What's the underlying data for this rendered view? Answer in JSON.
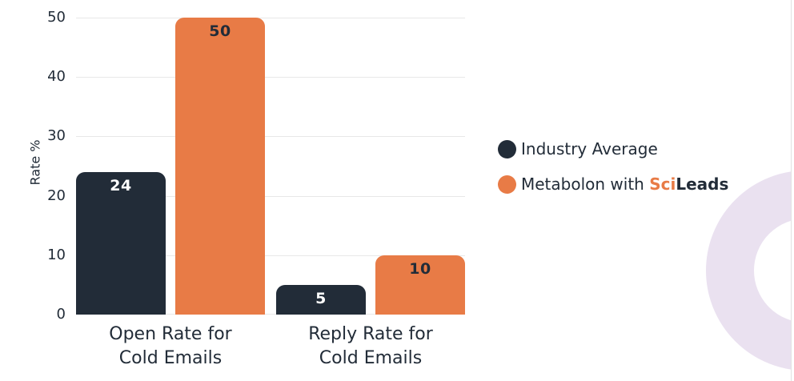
{
  "chart_data": {
    "type": "bar",
    "ylabel": "Rate %",
    "categories": [
      {
        "line1": "Open Rate for",
        "line2": "Cold Emails"
      },
      {
        "line1": "Reply Rate for",
        "line2": "Cold Emails"
      }
    ],
    "series": [
      {
        "name": "Industry Average",
        "values": [
          24,
          5
        ],
        "color": "#222C38",
        "value_label_color": "#FFFFFF"
      },
      {
        "name": "Metabolon with SciLeads",
        "values": [
          50,
          10
        ],
        "color": "#E87B46",
        "value_label_color": "#222C38"
      }
    ],
    "yticks": [
      0,
      10,
      20,
      30,
      40,
      50
    ],
    "ylim": [
      0,
      50
    ],
    "grid": true,
    "legend_position": "right-of-chart"
  },
  "legend": {
    "items": [
      {
        "label": "Industry Average",
        "color": "#222C38"
      },
      {
        "prefix": "Metabolon with ",
        "brand_sci": "Sci",
        "brand_leads": "Leads",
        "color": "#E87B46"
      }
    ]
  },
  "colors": {
    "dark_navy": "#222C38",
    "orange": "#E87B46",
    "gridline": "#E8E8E8",
    "decorative_ring": "#EAE1F0",
    "page_edge": "#E2E2E2"
  }
}
